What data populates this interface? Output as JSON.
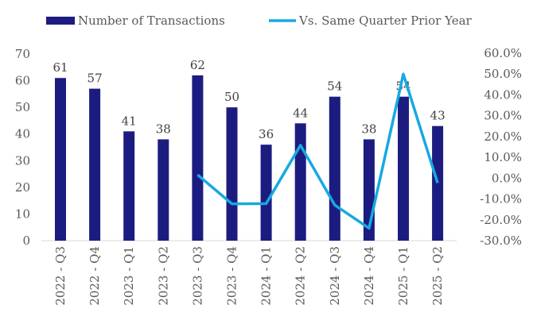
{
  "chart_data": {
    "type": "bar+line",
    "categories": [
      "2022 - Q3",
      "2022 - Q4",
      "2023 - Q1",
      "2023 - Q2",
      "2023 - Q3",
      "2023 - Q4",
      "2024 - Q1",
      "2024 - Q2",
      "2024 - Q3",
      "2024 - Q4",
      "2025 - Q1",
      "2025 - Q2"
    ],
    "series": [
      {
        "name": "Number of Transactions",
        "type": "bar",
        "axis": "left",
        "color": "#1c1c80",
        "values": [
          61,
          57,
          41,
          38,
          62,
          50,
          36,
          44,
          54,
          38,
          54,
          43
        ]
      },
      {
        "name": "Vs. Same Quarter Prior Year",
        "type": "line",
        "axis": "right",
        "color": "#17a9e1",
        "values": [
          null,
          null,
          null,
          null,
          1.6,
          -12.3,
          -12.2,
          15.8,
          -12.9,
          -24.0,
          50.0,
          -2.3
        ]
      }
    ],
    "left_axis": {
      "ylim": [
        0,
        70
      ],
      "ticks": [
        "0",
        "10",
        "20",
        "30",
        "40",
        "50",
        "60",
        "70"
      ]
    },
    "right_axis": {
      "ylim": [
        -30,
        60
      ],
      "ticks": [
        "-30.0%",
        "-20.0%",
        "-10.0%",
        "0.0%",
        "10.0%",
        "20.0%",
        "30.0%",
        "40.0%",
        "50.0%",
        "60.0%"
      ]
    },
    "grid": false,
    "legend": "top",
    "data_labels": true
  }
}
